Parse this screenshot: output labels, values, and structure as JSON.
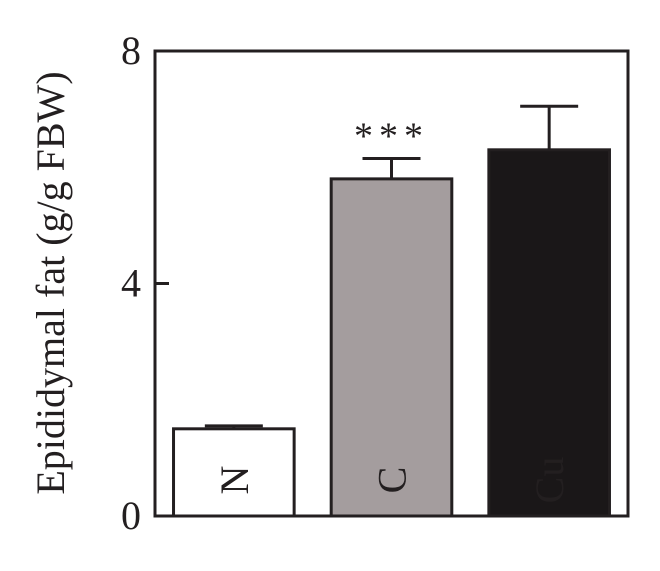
{
  "chart_data": {
    "type": "bar",
    "title": "",
    "xlabel": "",
    "ylabel": "Epididymal fat (g/g FBW)",
    "ylim": [
      0,
      8
    ],
    "yticks": [
      0,
      4,
      8
    ],
    "grid": false,
    "categories": [
      "N",
      "C",
      "Cu"
    ],
    "values": [
      1.5,
      5.8,
      6.3
    ],
    "errors": [
      0.05,
      0.35,
      0.75
    ],
    "significance": [
      "",
      "***",
      ""
    ],
    "bar_colors": [
      "#ffffff",
      "#a49d9e",
      "#1a1718"
    ],
    "label_colors": [
      "#231f20",
      "#ffffff",
      "#ffffff"
    ]
  }
}
